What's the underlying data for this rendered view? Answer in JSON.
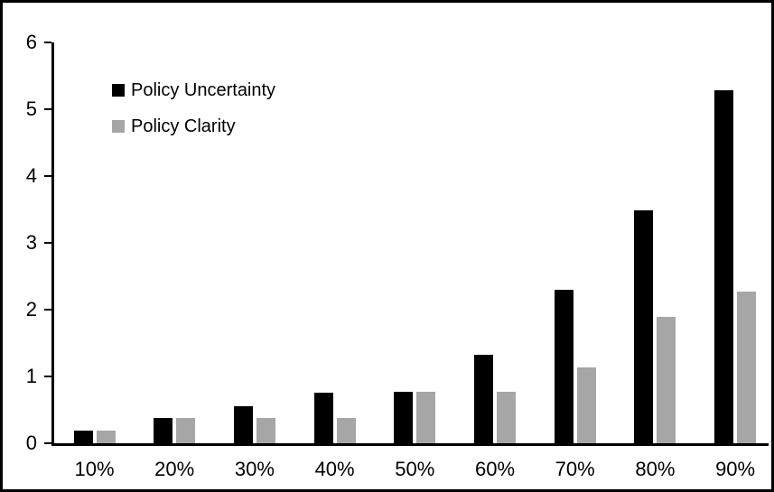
{
  "chart_data": {
    "type": "bar",
    "title": "",
    "xlabel": "",
    "ylabel": "",
    "categories": [
      "10%",
      "20%",
      "30%",
      "40%",
      "50%",
      "60%",
      "70%",
      "80%",
      "90%"
    ],
    "series": [
      {
        "name": "Policy Uncertainty",
        "color": "#000000",
        "values": [
          0.19,
          0.38,
          0.56,
          0.75,
          0.77,
          1.32,
          2.3,
          3.48,
          5.28
        ]
      },
      {
        "name": "Policy Clarity",
        "color": "#A6A6A6",
        "values": [
          0.19,
          0.38,
          0.38,
          0.38,
          0.77,
          0.77,
          1.14,
          1.89,
          2.27
        ]
      }
    ],
    "ylim": [
      0,
      6
    ],
    "yticks": [
      "0",
      "1",
      "2",
      "3",
      "4",
      "5",
      "6"
    ],
    "grid": false,
    "legend_position": "top-left-inside"
  },
  "frame": {
    "background": "#FFFFFF",
    "border_color": "#000000",
    "axis_color": "#000000",
    "text_color": "#000000"
  }
}
